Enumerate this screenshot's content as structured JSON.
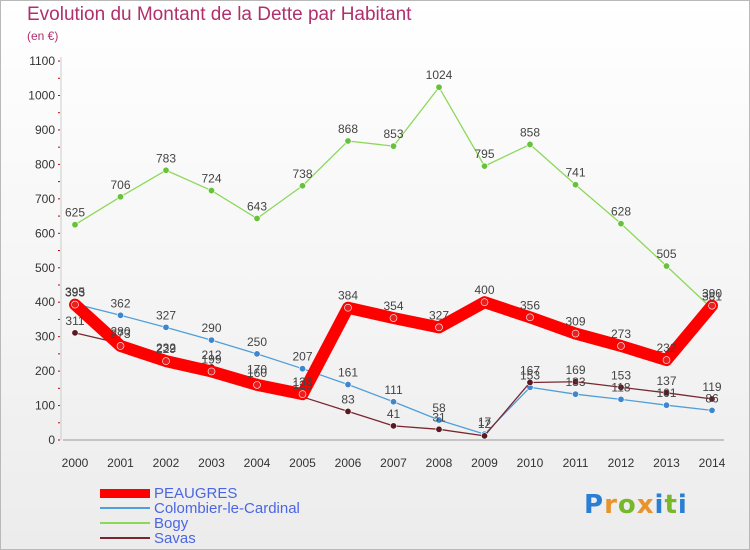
{
  "title": "Evolution du Montant de la Dette par Habitant",
  "subtitle": "(en €)",
  "brand": {
    "text": "Proxiti",
    "letter_colors": [
      "#2a7fd4",
      "#e8932c",
      "#76b82a",
      "#e8932c",
      "#2a7fd4",
      "#76b82a",
      "#2a7fd4"
    ]
  },
  "colors": {
    "label_text": "#4c66e2",
    "title": "#b0306c",
    "axis_red": "#cc0000"
  },
  "chart_data": {
    "type": "line",
    "title": "Evolution du Montant de la Dette par Habitant",
    "ylabel": "(en €)",
    "xlabel": "",
    "x": [
      "2000",
      "2001",
      "2002",
      "2003",
      "2004",
      "2005",
      "2006",
      "2007",
      "2008",
      "2009",
      "2010",
      "2011",
      "2012",
      "2013",
      "2014"
    ],
    "ylim": [
      0,
      1100
    ],
    "yticks": [
      0,
      100,
      200,
      300,
      400,
      500,
      600,
      700,
      800,
      900,
      1000,
      1100
    ],
    "grid": false,
    "legend_position": "bottom-left",
    "series": [
      {
        "name": "PEAUGRES",
        "color": "#ff0000",
        "marker": "#e82020",
        "values": [
          393,
          273,
          229,
          199,
          160,
          133,
          384,
          354,
          327,
          400,
          356,
          309,
          273,
          232,
          390
        ]
      },
      {
        "name": "Colombier-le-Cardinal",
        "color": "#4f9fd8",
        "marker": "#3f86cc",
        "values": [
          395,
          362,
          327,
          290,
          250,
          207,
          161,
          111,
          58,
          17,
          153,
          133,
          118,
          101,
          86
        ]
      },
      {
        "name": "Bogy",
        "color": "#8dd85a",
        "marker": "#66c23a",
        "values": [
          625,
          706,
          783,
          724,
          643,
          738,
          868,
          853,
          1024,
          795,
          858,
          741,
          628,
          505,
          381
        ]
      },
      {
        "name": "Savas",
        "color": "#7a2630",
        "marker": "#5a1820",
        "values": [
          311,
          280,
          232,
          212,
          170,
          125,
          83,
          41,
          31,
          12,
          167,
          169,
          153,
          137,
          119
        ]
      }
    ]
  }
}
